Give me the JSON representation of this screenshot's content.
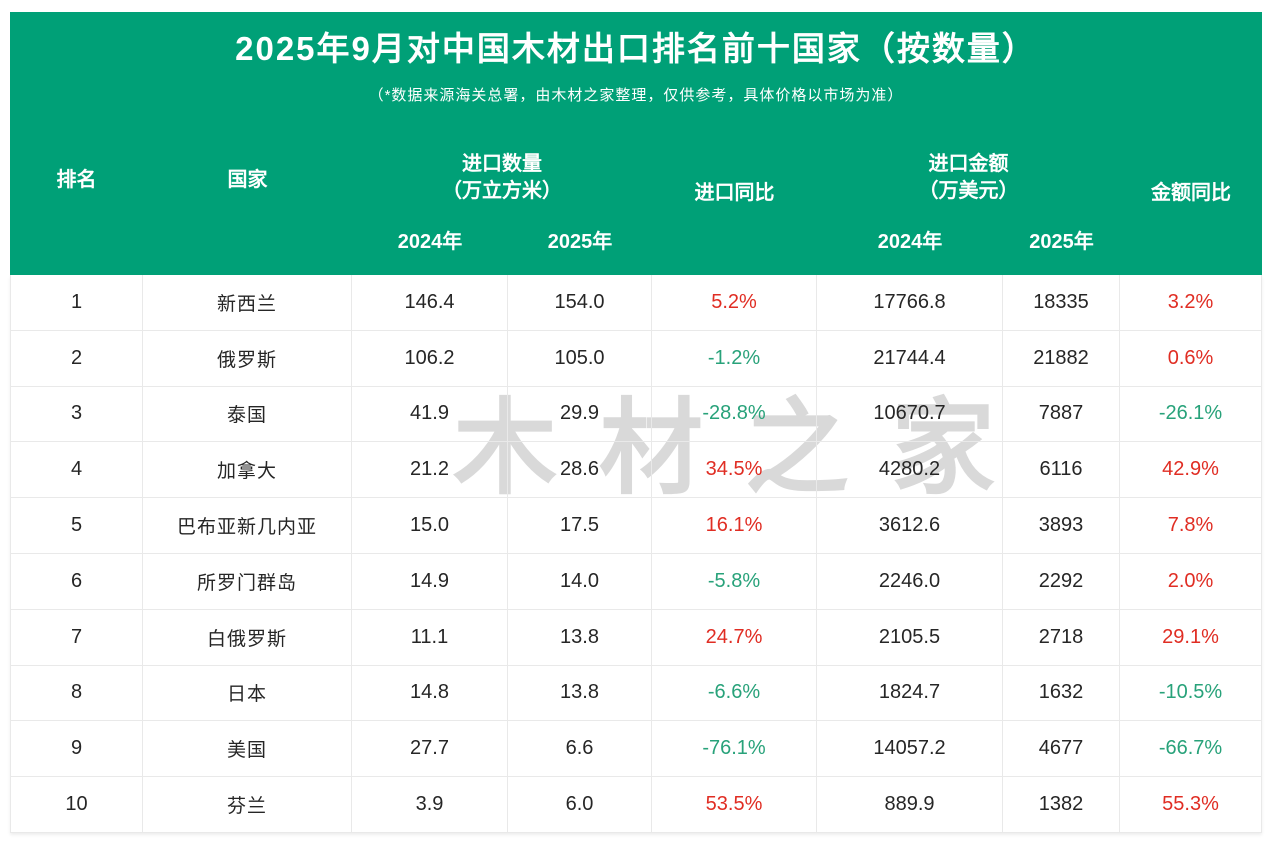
{
  "chart_data": {
    "type": "table",
    "title": "2025年9月对中国木材出口排名前十国家（按数量）",
    "subtitle": "（*数据来源海关总署，由木材之家整理，仅供参考，具体价格以市场为准）",
    "columns": {
      "rank": "排名",
      "country": "国家",
      "qty_group": "进口数量",
      "qty_unit": "（万立方米）",
      "qty_yoy": "进口同比",
      "amt_group": "进口金额",
      "amt_unit": "（万美元）",
      "amt_yoy": "金额同比",
      "year_2024": "2024年",
      "year_2025": "2025年"
    },
    "rows": [
      {
        "rank": "1",
        "country": "新西兰",
        "qty_2024": "146.4",
        "qty_2025": "154.0",
        "qty_yoy": "5.2%",
        "amt_2024": "17766.8",
        "amt_2025": "18335",
        "amt_yoy": "3.2%"
      },
      {
        "rank": "2",
        "country": "俄罗斯",
        "qty_2024": "106.2",
        "qty_2025": "105.0",
        "qty_yoy": "-1.2%",
        "amt_2024": "21744.4",
        "amt_2025": "21882",
        "amt_yoy": "0.6%"
      },
      {
        "rank": "3",
        "country": "泰国",
        "qty_2024": "41.9",
        "qty_2025": "29.9",
        "qty_yoy": "-28.8%",
        "amt_2024": "10670.7",
        "amt_2025": "7887",
        "amt_yoy": "-26.1%"
      },
      {
        "rank": "4",
        "country": "加拿大",
        "qty_2024": "21.2",
        "qty_2025": "28.6",
        "qty_yoy": "34.5%",
        "amt_2024": "4280.2",
        "amt_2025": "6116",
        "amt_yoy": "42.9%"
      },
      {
        "rank": "5",
        "country": "巴布亚新几内亚",
        "qty_2024": "15.0",
        "qty_2025": "17.5",
        "qty_yoy": "16.1%",
        "amt_2024": "3612.6",
        "amt_2025": "3893",
        "amt_yoy": "7.8%"
      },
      {
        "rank": "6",
        "country": "所罗门群岛",
        "qty_2024": "14.9",
        "qty_2025": "14.0",
        "qty_yoy": "-5.8%",
        "amt_2024": "2246.0",
        "amt_2025": "2292",
        "amt_yoy": "2.0%"
      },
      {
        "rank": "7",
        "country": "白俄罗斯",
        "qty_2024": "11.1",
        "qty_2025": "13.8",
        "qty_yoy": "24.7%",
        "amt_2024": "2105.5",
        "amt_2025": "2718",
        "amt_yoy": "29.1%"
      },
      {
        "rank": "8",
        "country": "日本",
        "qty_2024": "14.8",
        "qty_2025": "13.8",
        "qty_yoy": "-6.6%",
        "amt_2024": "1824.7",
        "amt_2025": "1632",
        "amt_yoy": "-10.5%"
      },
      {
        "rank": "9",
        "country": "美国",
        "qty_2024": "27.7",
        "qty_2025": "6.6",
        "qty_yoy": "-76.1%",
        "amt_2024": "14057.2",
        "amt_2025": "4677",
        "amt_yoy": "-66.7%"
      },
      {
        "rank": "10",
        "country": "芬兰",
        "qty_2024": "3.9",
        "qty_2025": "6.0",
        "qty_yoy": "53.5%",
        "amt_2024": "889.9",
        "amt_2025": "1382",
        "amt_yoy": "55.3%"
      }
    ],
    "value_color_rule": "positive values shown red, negative values shown green"
  },
  "watermark": "木材之家",
  "colors": {
    "header_green": "#00a077",
    "positive_red": "#e02d23",
    "negative_green": "#28a27a",
    "body_text": "#262626",
    "grid_border": "#e9e9e9",
    "watermark_gray": "#d9d9d9"
  }
}
